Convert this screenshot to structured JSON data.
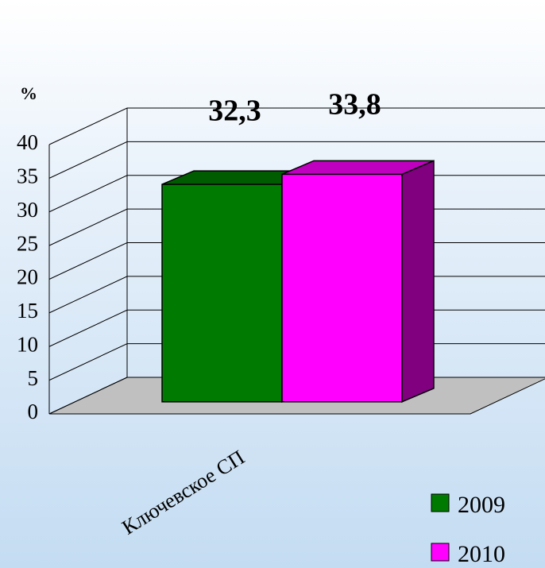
{
  "chart_data": {
    "type": "bar3d",
    "y_label": "%",
    "categories": [
      "Ключевское СП"
    ],
    "series": [
      {
        "name": "2009",
        "color": "#007a00",
        "values": [
          32.3
        ],
        "value_labels": [
          "32,3"
        ]
      },
      {
        "name": "2010",
        "color": "#ff00ff",
        "values": [
          33.8
        ],
        "value_labels": [
          "33,8"
        ]
      }
    ],
    "ylim": [
      0,
      40
    ],
    "yticks": [
      0,
      5,
      10,
      15,
      20,
      25,
      30,
      35,
      40
    ],
    "grid": true,
    "legend": "lower right"
  }
}
